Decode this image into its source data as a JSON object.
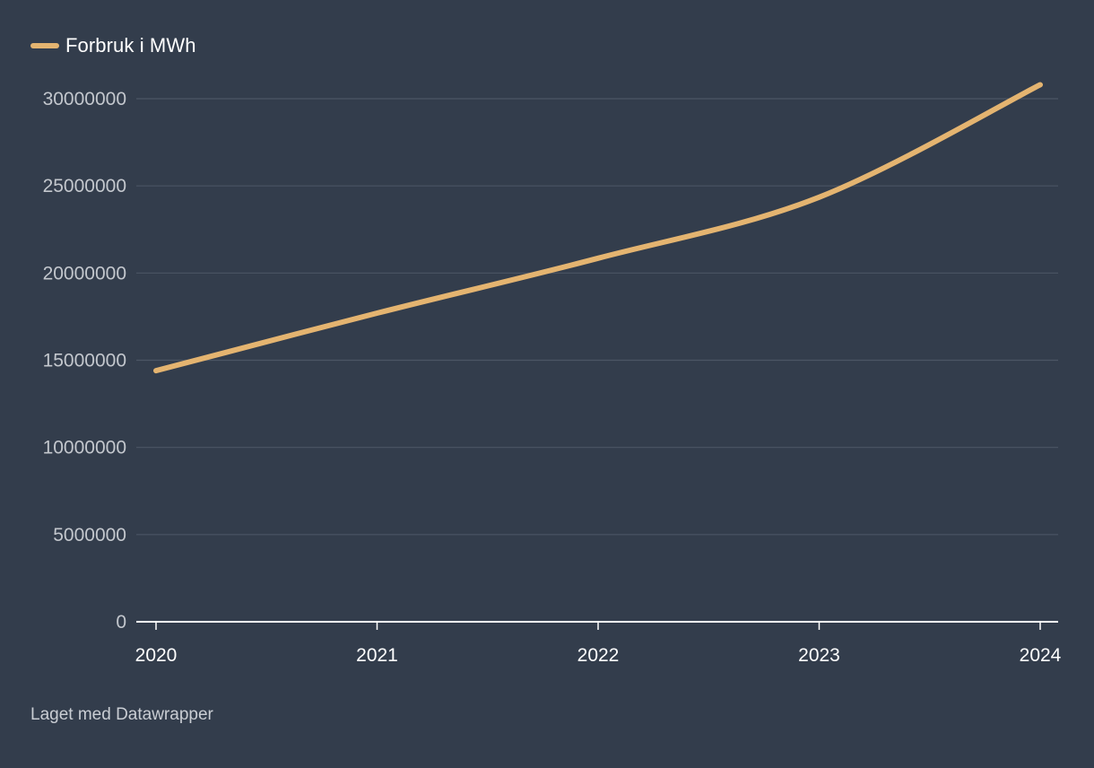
{
  "legend": {
    "label": "Forbruk i MWh",
    "color": "#e4b470"
  },
  "footer": {
    "credit": "Laget med Datawrapper"
  },
  "colors": {
    "background": "#333d4c",
    "gridline": "#4b5564",
    "axis": "#ffffff",
    "tick_label": "#c3c7cd",
    "x_tick_label": "#ffffff"
  },
  "chart_data": {
    "type": "line",
    "x": [
      "2020",
      "2021",
      "2022",
      "2023",
      "2024"
    ],
    "x_ticks": [
      "2020",
      "2021",
      "2022",
      "2023",
      "2024"
    ],
    "series": [
      {
        "name": "Forbruk i MWh",
        "values": [
          14400000,
          17700000,
          20850000,
          24350000,
          30800000
        ]
      }
    ],
    "ylim": [
      0,
      30000000
    ],
    "y_ticks": [
      0,
      5000000,
      10000000,
      15000000,
      20000000,
      25000000,
      30000000
    ],
    "y_tick_labels": [
      "0",
      "5000000",
      "10000000",
      "15000000",
      "20000000",
      "25000000",
      "30000000"
    ],
    "grid": true,
    "legend_position": "top-left",
    "line_style": "smooth"
  }
}
